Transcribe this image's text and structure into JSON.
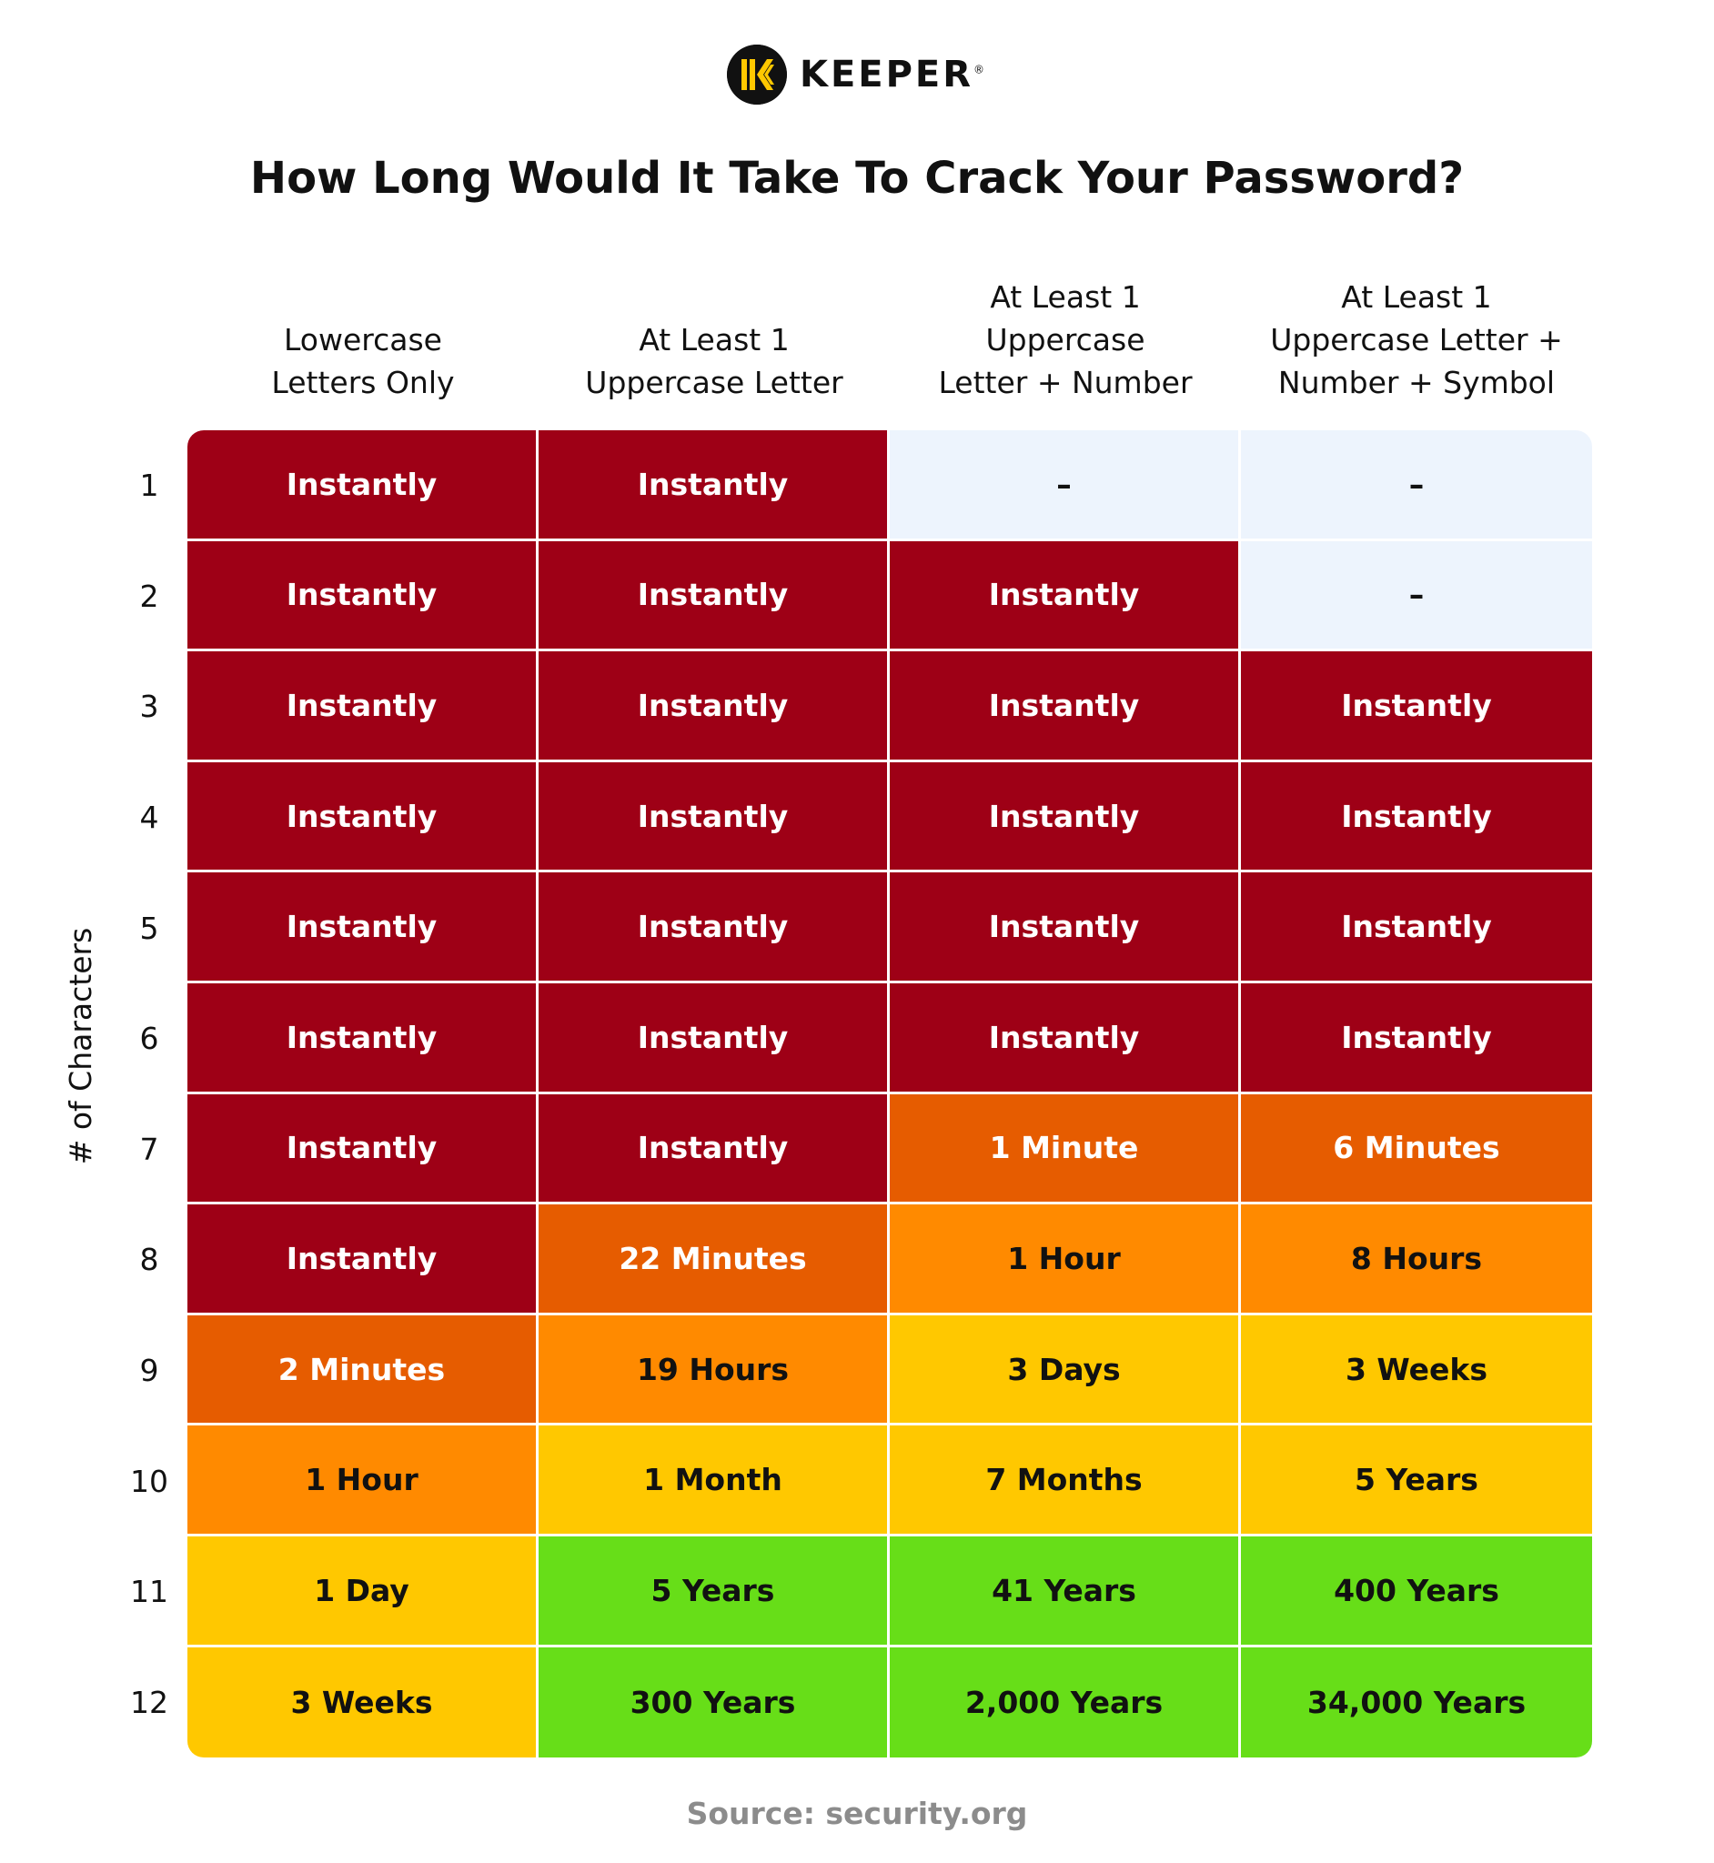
{
  "brand": {
    "name": "KEEPER",
    "mark": "registered-mark",
    "reg_symbol": "®",
    "logo_icon": "keeper-k-icon"
  },
  "source_label": "Source: security.org",
  "chart_data": {
    "type": "table",
    "title": "How Long Would It Take To Crack Your Password?",
    "ylabel": "# of Characters",
    "columns": [
      "Lowercase\nLetters Only",
      "At Least 1\nUppercase Letter",
      "At Least 1\nUppercase\nLetter  +  Number",
      "At Least 1\nUppercase Letter +\nNumber + Symbol"
    ],
    "rows": [
      "1",
      "2",
      "3",
      "4",
      "5",
      "6",
      "7",
      "8",
      "9",
      "10",
      "11",
      "12"
    ],
    "values": [
      [
        "Instantly",
        "Instantly",
        "–",
        "–"
      ],
      [
        "Instantly",
        "Instantly",
        "Instantly",
        "–"
      ],
      [
        "Instantly",
        "Instantly",
        "Instantly",
        "Instantly"
      ],
      [
        "Instantly",
        "Instantly",
        "Instantly",
        "Instantly"
      ],
      [
        "Instantly",
        "Instantly",
        "Instantly",
        "Instantly"
      ],
      [
        "Instantly",
        "Instantly",
        "Instantly",
        "Instantly"
      ],
      [
        "Instantly",
        "Instantly",
        "1 Minute",
        "6 Minutes"
      ],
      [
        "Instantly",
        "22 Minutes",
        "1 Hour",
        "8 Hours"
      ],
      [
        "2 Minutes",
        "19 Hours",
        "3 Days",
        "3 Weeks"
      ],
      [
        "1 Hour",
        "1 Month",
        "7 Months",
        "5 Years"
      ],
      [
        "1 Day",
        "5 Years",
        "41 Years",
        "400 Years"
      ],
      [
        "3 Weeks",
        "300 Years",
        "2,000 Years",
        "34,000 Years"
      ]
    ],
    "levels": [
      [
        "instant",
        "instant",
        "na",
        "na"
      ],
      [
        "instant",
        "instant",
        "instant",
        "na"
      ],
      [
        "instant",
        "instant",
        "instant",
        "instant"
      ],
      [
        "instant",
        "instant",
        "instant",
        "instant"
      ],
      [
        "instant",
        "instant",
        "instant",
        "instant"
      ],
      [
        "instant",
        "instant",
        "instant",
        "instant"
      ],
      [
        "instant",
        "instant",
        "minutes",
        "minutes"
      ],
      [
        "instant",
        "minutes",
        "hours",
        "hours"
      ],
      [
        "minutes",
        "hours",
        "days",
        "days"
      ],
      [
        "hours",
        "days",
        "days",
        "days"
      ],
      [
        "days",
        "years",
        "years",
        "years"
      ],
      [
        "days",
        "years",
        "years",
        "years"
      ]
    ],
    "colors": {
      "instant": {
        "bg": "#9e0016",
        "fg": "#ffffff"
      },
      "minutes": {
        "bg": "#e65c00",
        "fg": "#ffffff"
      },
      "hours": {
        "bg": "#ff8a00",
        "fg": "#111111"
      },
      "days": {
        "bg": "#ffc800",
        "fg": "#111111"
      },
      "years": {
        "bg": "#67de18",
        "fg": "#111111"
      },
      "na": {
        "bg": "#edf4fd",
        "fg": "#111111"
      }
    },
    "grid": true,
    "legend": "none"
  }
}
